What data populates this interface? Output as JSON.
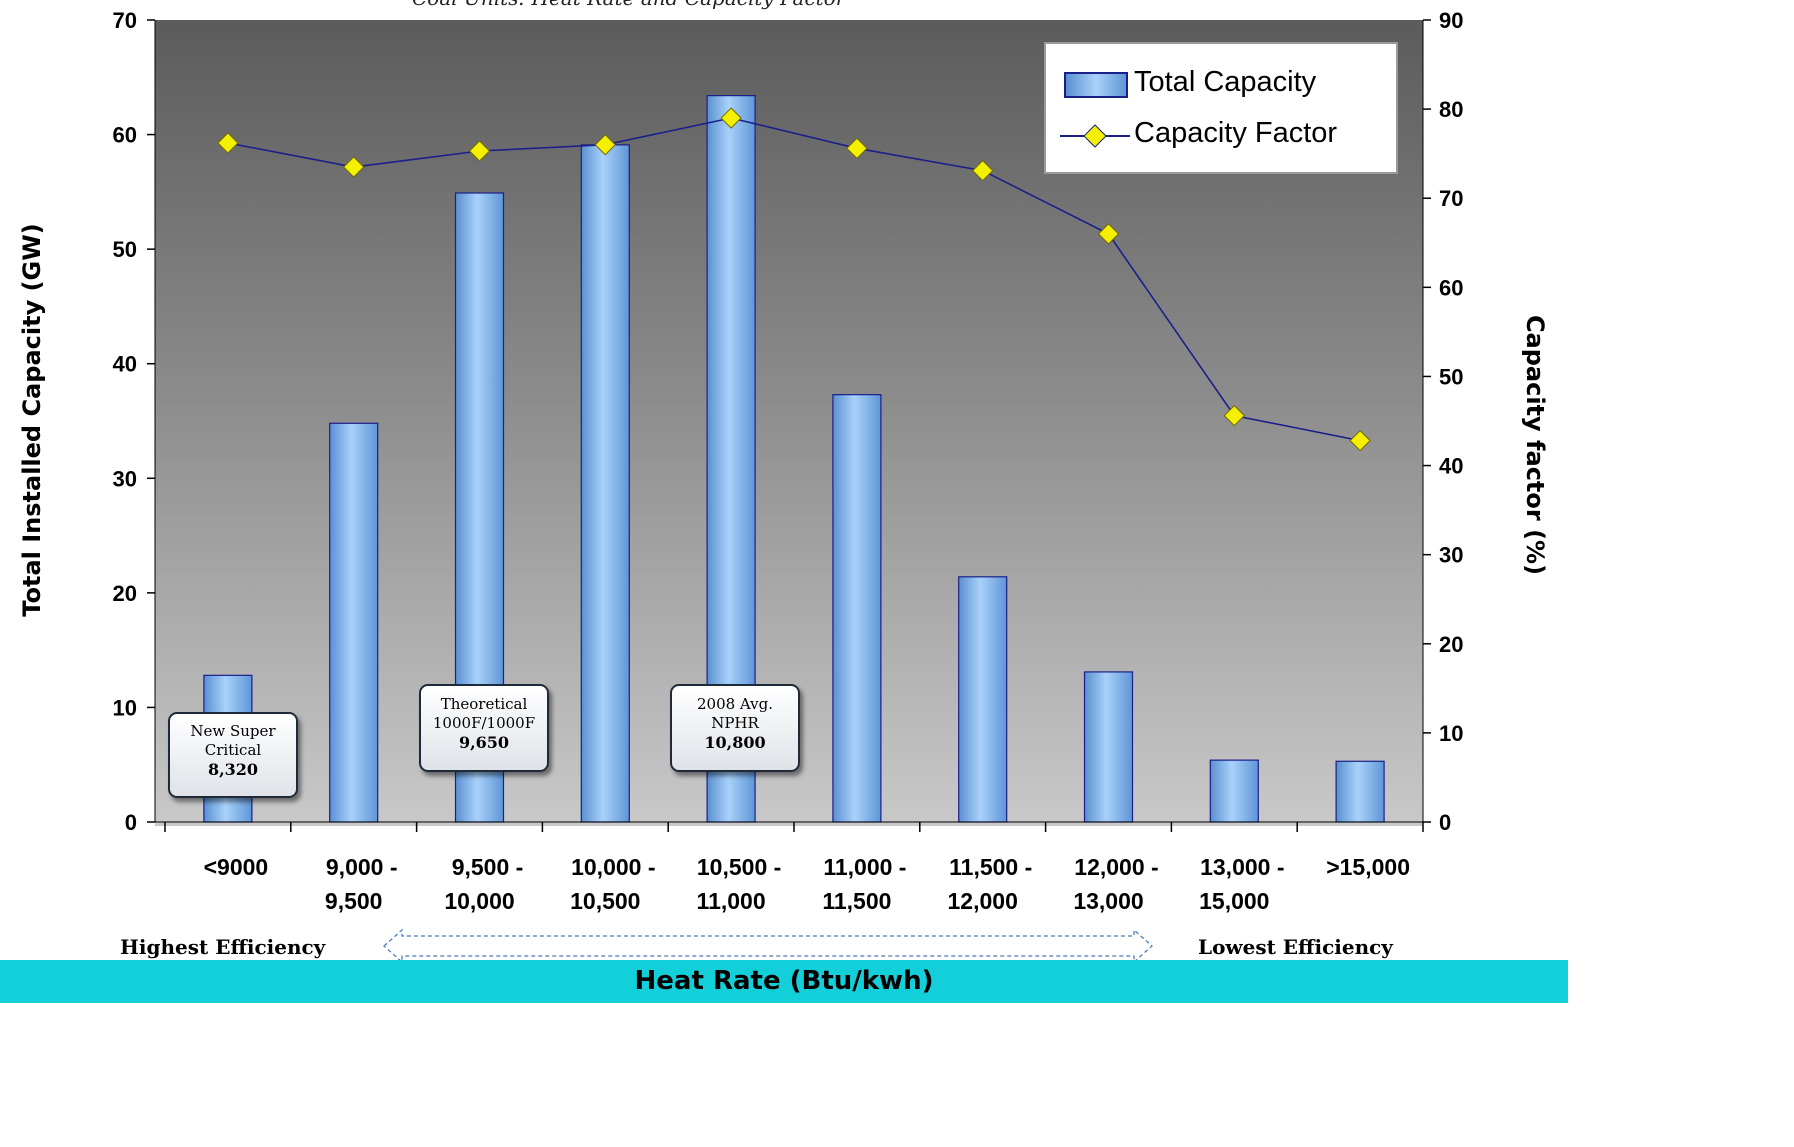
{
  "chart_data": {
    "type": "bar",
    "title": "Coal Units: Heat Rate and Capacity Factor",
    "xlabel": "Heat Rate (Btu/kwh)",
    "ylabel": "Total Installed Capacity (GW)",
    "y2label": "Capacity factor (%)",
    "categories": [
      [
        "<9000"
      ],
      [
        "9,000 -",
        "9,500"
      ],
      [
        "9,500 -",
        "10,000"
      ],
      [
        "10,000 -",
        "10,500"
      ],
      [
        "10,500 -",
        "11,000"
      ],
      [
        "11,000 -",
        "11,500"
      ],
      [
        "11,500 -",
        "12,000"
      ],
      [
        "12,000 -",
        "13,000"
      ],
      [
        "13,000 -",
        "15,000"
      ],
      [
        ">15,000"
      ]
    ],
    "ylim": [
      0,
      70
    ],
    "y2lim": [
      0,
      90
    ],
    "yticks": [
      0,
      10,
      20,
      30,
      40,
      50,
      60,
      70
    ],
    "y2ticks": [
      0,
      10,
      20,
      30,
      40,
      50,
      60,
      70,
      80,
      90
    ],
    "series": [
      {
        "name": "Total Capacity",
        "type": "bar",
        "axis": "left",
        "values": [
          12.8,
          34.8,
          54.9,
          59.1,
          63.4,
          37.3,
          21.4,
          13.1,
          5.4,
          5.3
        ],
        "color": "#7fb6ec"
      },
      {
        "name": "Capacity Factor",
        "type": "line",
        "axis": "right",
        "values": [
          76.2,
          73.5,
          75.3,
          76.0,
          79.0,
          75.6,
          73.1,
          66.0,
          45.6,
          42.8
        ],
        "line_color": "#1b1f8a",
        "marker_color": "#f5f000"
      }
    ],
    "legend": {
      "position": "top-right",
      "entries": [
        "Total Capacity",
        "Capacity Factor"
      ]
    },
    "annotations": [
      {
        "category_index": 0,
        "lines": [
          "New Super",
          "Critical"
        ],
        "value": "8,320"
      },
      {
        "category_index": 2,
        "lines": [
          "Theoretical",
          "1000F/1000F"
        ],
        "value": "9,650"
      },
      {
        "category_index": 4,
        "lines": [
          "2008 Avg.",
          "NPHR"
        ],
        "value": "10,800"
      }
    ],
    "efficiency_labels": {
      "high": "Highest Efficiency",
      "low": "Lowest Efficiency"
    },
    "grid": false,
    "plot_background": "gradient gray"
  }
}
